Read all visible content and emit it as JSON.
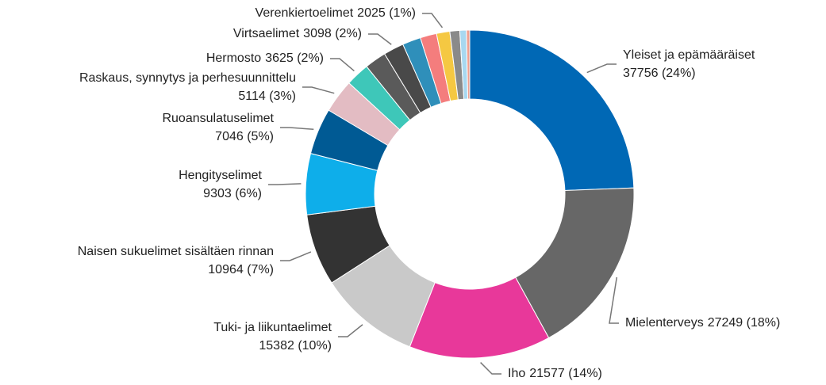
{
  "chart_data": {
    "type": "donut",
    "categories": [
      "Yleiset ja epämääräiset",
      "Mielenterveys",
      "Iho",
      "Tuki- ja liikuntaelimet",
      "Naisen sukuelimet sisältäen rinnan",
      "Hengityselimet",
      "Ruoansulatuselimet",
      "Raskaus, synnytys ja perhesuunnittelu",
      "Hermosto",
      null,
      "Virtsaelimet",
      null,
      null,
      "Verenkiertoelimet",
      null,
      null,
      null
    ],
    "values": [
      37756,
      27249,
      21577,
      15382,
      10964,
      9303,
      7046,
      5114,
      3625,
      3300,
      3098,
      2800,
      2500,
      2025,
      1500,
      1000,
      500
    ],
    "value_labels": [
      "37756 (24%)",
      "27249 (18%)",
      "21577 (14%)",
      "15382 (10%)",
      "10964 (7%)",
      "9303 (6%)",
      "7046 (5%)",
      "5114 (3%)",
      "3625 (2%)",
      null,
      "3098 (2%)",
      null,
      null,
      "2025 (1%)",
      null,
      null,
      null
    ],
    "colors": [
      "#0068b5",
      "#676767",
      "#e8389a",
      "#c9c9c9",
      "#333333",
      "#0eaeea",
      "#005a94",
      "#e3bcc3",
      "#3ec7b9",
      "#5a5a5a",
      "#494949",
      "#2f8fba",
      "#f47d7d",
      "#f5c842",
      "#8a8a8a",
      "#a8d8f0",
      "#f0a090"
    ]
  }
}
